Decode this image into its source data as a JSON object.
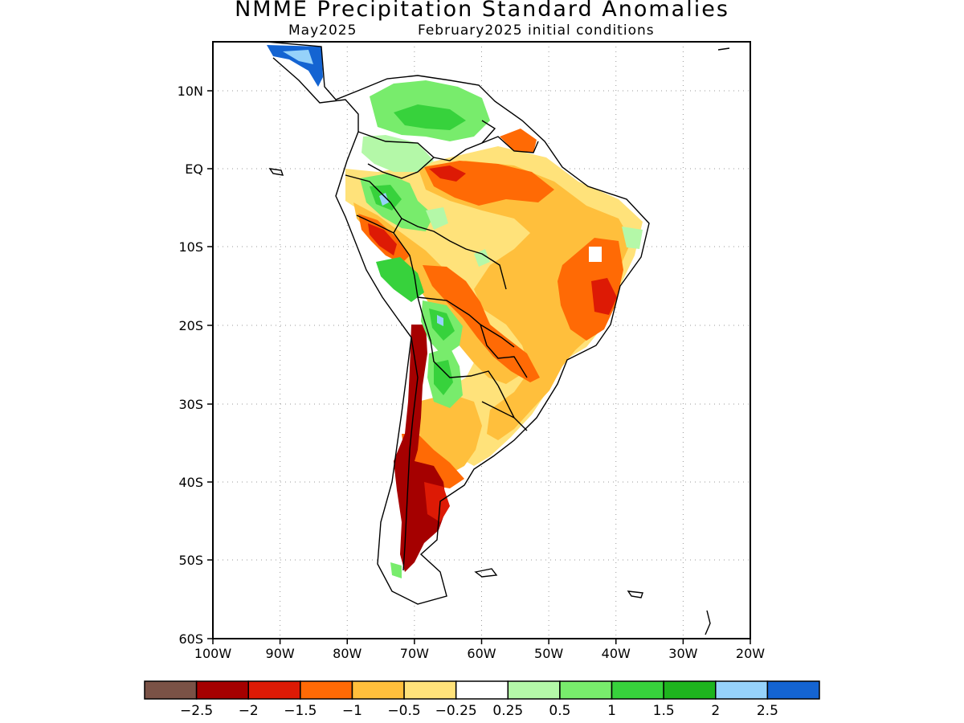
{
  "title": "NMME Precipitation Standard Anomalies",
  "subtitle_left": "May2025",
  "subtitle_right": "February2025 initial conditions",
  "lat_ticks": [
    "10N",
    "EQ",
    "10S",
    "20S",
    "30S",
    "40S",
    "50S",
    "60S"
  ],
  "lon_ticks": [
    "100W",
    "90W",
    "80W",
    "70W",
    "60W",
    "50W",
    "40W",
    "30W",
    "20W"
  ],
  "colorbar": {
    "colors": [
      "#7a5246",
      "#a50000",
      "#dd1a05",
      "#ff6a05",
      "#ffbf3c",
      "#ffe27a",
      "#ffffff",
      "#b4f8a8",
      "#78ec6c",
      "#37d23c",
      "#1eb41e",
      "#96d2fa",
      "#1464d2"
    ],
    "labels": [
      "−2.5",
      "−2",
      "−1.5",
      "−1",
      "−0.5",
      "−0.25",
      "0.25",
      "0.5",
      "1",
      "1.5",
      "2",
      "2.5"
    ]
  },
  "palette": {
    "deep_red": "#a50000",
    "red": "#dd1a05",
    "orange": "#ff6a05",
    "light_orange": "#ffbf3c",
    "yellow": "#ffe27a",
    "light_green": "#b4f8a8",
    "green": "#78ec6c",
    "mid_green": "#37d23c",
    "light_blue": "#96d2fa",
    "blue": "#1464d2",
    "coast": "#000000",
    "grid": "#9a9a9a"
  }
}
